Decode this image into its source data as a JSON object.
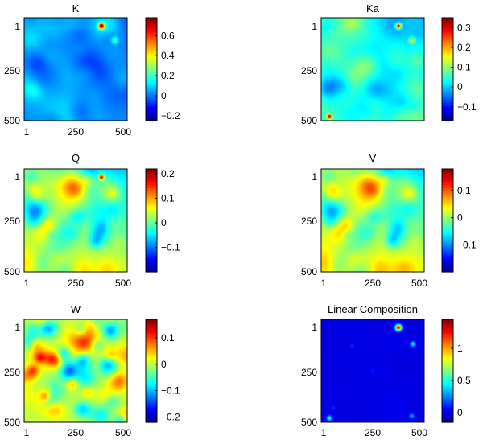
{
  "colors": {
    "colormap": [
      "#00008f",
      "#0000ff",
      "#0080ff",
      "#00ffff",
      "#80ff80",
      "#ffff00",
      "#ff8000",
      "#ff0000",
      "#800000"
    ],
    "frame": "#000000",
    "background": "#ffffff"
  },
  "chart_data": [
    {
      "type": "heatmap",
      "title": "K",
      "x_ticks": [
        "1",
        "250",
        "500"
      ],
      "y_ticks": [
        "1",
        "250",
        "500"
      ],
      "xlim": [
        1,
        500
      ],
      "ylim": [
        1,
        500
      ],
      "colorbar": {
        "min": -0.25,
        "max": 0.78,
        "ticks": [
          -0.2,
          0,
          0.2,
          0.4,
          0.6
        ],
        "labels": [
          "−0.2",
          "0",
          "0.2",
          "0.4",
          "0.6"
        ]
      },
      "field": {
        "base": 0.02,
        "amplitude": 0.14,
        "seed": 11,
        "scale": 46,
        "gradient": -0.05,
        "sources": [
          {
            "x": 375,
            "y": 40,
            "value": 0.75,
            "radius": 10
          },
          {
            "x": 440,
            "y": 110,
            "value": 0.2,
            "radius": 12
          }
        ]
      }
    },
    {
      "type": "heatmap",
      "title": "Ka",
      "x_ticks": [
        "1",
        "250",
        "500"
      ],
      "y_ticks": [
        "1",
        "250",
        "500"
      ],
      "xlim": [
        1,
        500
      ],
      "ylim": [
        1,
        500
      ],
      "colorbar": {
        "min": -0.17,
        "max": 0.35,
        "ticks": [
          -0.1,
          0,
          0.1,
          0.2,
          0.3
        ],
        "labels": [
          "−0.1",
          "0",
          "0.1",
          "0.2",
          "0.3"
        ]
      },
      "field": {
        "base": 0.06,
        "amplitude": 0.1,
        "seed": 23,
        "scale": 40,
        "gradient": -0.07,
        "sources": [
          {
            "x": 375,
            "y": 40,
            "value": 0.33,
            "radius": 9
          },
          {
            "x": 440,
            "y": 110,
            "value": 0.15,
            "radius": 10
          },
          {
            "x": 40,
            "y": 480,
            "value": 0.3,
            "radius": 8
          }
        ]
      }
    },
    {
      "type": "heatmap",
      "title": "Q",
      "x_ticks": [
        "1",
        "250",
        "500"
      ],
      "y_ticks": [
        "1",
        "250",
        "500"
      ],
      "xlim": [
        1,
        500
      ],
      "ylim": [
        1,
        500
      ],
      "colorbar": {
        "min": -0.2,
        "max": 0.22,
        "ticks": [
          -0.1,
          0,
          0.1,
          0.2
        ],
        "labels": [
          "−0.1",
          "0",
          "0.1",
          "0.2"
        ]
      },
      "field": {
        "base": 0.03,
        "amplitude": 0.12,
        "seed": 37,
        "scale": 34,
        "gradient": -0.1,
        "sources": [
          {
            "x": 375,
            "y": 40,
            "value": 0.22,
            "radius": 9
          }
        ]
      }
    },
    {
      "type": "heatmap",
      "title": "V",
      "x_ticks": [
        "1",
        "250",
        "500"
      ],
      "y_ticks": [
        "1",
        "250",
        "500"
      ],
      "xlim": [
        1,
        500
      ],
      "ylim": [
        1,
        500
      ],
      "colorbar": {
        "min": -0.2,
        "max": 0.18,
        "ticks": [
          -0.1,
          0,
          0.1
        ],
        "labels": [
          "−0.1",
          "0",
          "0.1"
        ]
      },
      "field": {
        "base": 0.02,
        "amplitude": 0.11,
        "seed": 37,
        "scale": 34,
        "gradient": -0.1,
        "sources": []
      }
    },
    {
      "type": "heatmap",
      "title": "W",
      "x_ticks": [
        "1",
        "250",
        "500"
      ],
      "y_ticks": [
        "1",
        "250",
        "500"
      ],
      "xlim": [
        1,
        500
      ],
      "ylim": [
        1,
        500
      ],
      "colorbar": {
        "min": -0.22,
        "max": 0.17,
        "ticks": [
          -0.2,
          -0.1,
          0,
          0.1
        ],
        "labels": [
          "−0.2",
          "−0.1",
          "0",
          "0.1"
        ]
      },
      "field": {
        "base": 0.0,
        "amplitude": 0.13,
        "seed": 53,
        "scale": 30,
        "gradient": 0.0,
        "sources": []
      }
    },
    {
      "type": "heatmap",
      "title": "Linear Composition",
      "x_ticks": [
        "1",
        "250",
        "500"
      ],
      "y_ticks": [
        "1",
        "250",
        "500"
      ],
      "xlim": [
        1,
        500
      ],
      "ylim": [
        1,
        500
      ],
      "colorbar": {
        "min": -0.15,
        "max": 1.45,
        "ticks": [
          0,
          0.5,
          1
        ],
        "labels": [
          "0",
          "0.5",
          "1"
        ]
      },
      "field": {
        "base": 0.0,
        "amplitude": 0.02,
        "seed": 71,
        "scale": 40,
        "gradient": 0.0,
        "sources": [
          {
            "x": 375,
            "y": 40,
            "value": 1.4,
            "radius": 10
          },
          {
            "x": 445,
            "y": 120,
            "value": 0.45,
            "radius": 9
          },
          {
            "x": 40,
            "y": 480,
            "value": 0.5,
            "radius": 9
          },
          {
            "x": 440,
            "y": 470,
            "value": 0.35,
            "radius": 8
          },
          {
            "x": 150,
            "y": 130,
            "value": 0.15,
            "radius": 7
          },
          {
            "x": 60,
            "y": 430,
            "value": 0.12,
            "radius": 7
          },
          {
            "x": 250,
            "y": 250,
            "value": 0.1,
            "radius": 6
          }
        ]
      }
    }
  ]
}
